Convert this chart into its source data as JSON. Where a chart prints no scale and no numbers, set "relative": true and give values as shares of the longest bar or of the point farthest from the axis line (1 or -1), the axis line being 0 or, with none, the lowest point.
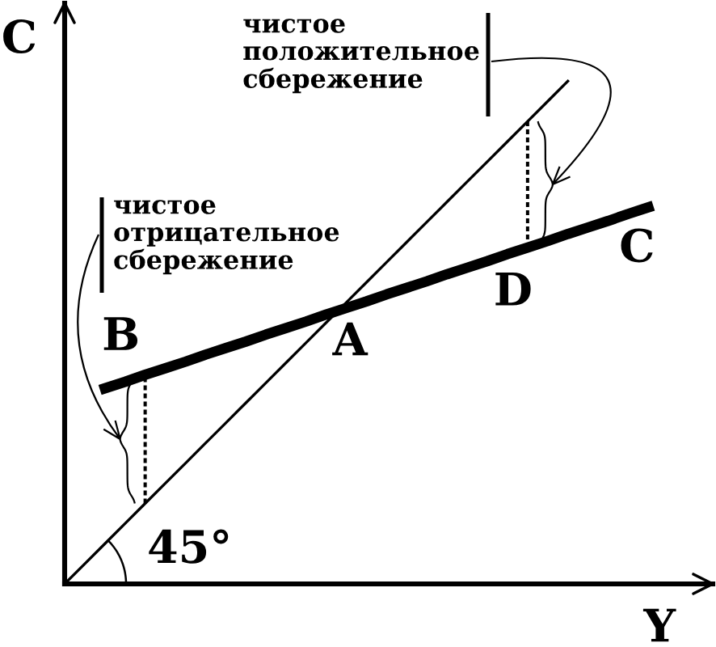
{
  "chart_data": {
    "type": "line",
    "relative": true,
    "xlabel": "Y",
    "ylabel": "C",
    "categories": [
      null,
      null,
      null,
      null,
      null,
      null,
      null,
      null,
      null,
      null,
      null,
      null,
      null,
      null,
      null,
      null,
      null,
      null,
      null,
      null,
      null,
      null,
      null,
      null,
      null,
      null,
      null,
      null,
      null,
      null
    ],
    "series": [
      {
        "color": "#000000",
        "values": [
          0,
          0.04,
          0.08,
          0.12,
          0.16,
          0.2,
          0.24,
          0.28,
          0.32,
          0.36,
          0.4,
          0.44,
          0.48,
          0.52,
          0.56,
          0.6,
          0.64,
          0.68,
          0.72,
          0.76,
          0.8,
          0.84,
          0.88,
          0.92,
          0.96,
          1,
          null,
          null,
          null,
          null
        ]
      },
      {
        "name": "C",
        "color": "#000000",
        "values": [
          null,
          null,
          0.389,
          0.402,
          0.416,
          0.429,
          0.442,
          0.456,
          0.469,
          0.482,
          0.496,
          0.509,
          0.522,
          0.536,
          0.549,
          0.562,
          0.576,
          0.589,
          0.602,
          0.616,
          0.629,
          0.642,
          0.656,
          0.669,
          0.682,
          0.696,
          0.709,
          0.722,
          0.736,
          0.749
        ]
      }
    ],
    "annotations": [
      {
        "text": "B",
        "y": 0.416
      },
      {
        "text": "A",
        "y": 0.544
      },
      {
        "text": "D",
        "y": 0.669
      },
      "чистое\nотрицательное\nсбережение",
      "чистое\nположительное\nсбережение",
      "45°"
    ]
  }
}
